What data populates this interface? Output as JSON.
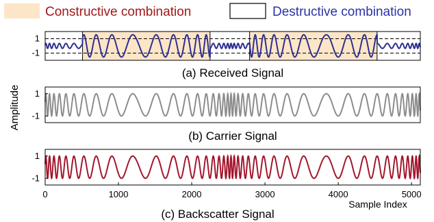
{
  "legend": {
    "items": [
      {
        "label": "Constructive combination",
        "text_color": "#a01818",
        "swatch_color": "#fde5c7",
        "swatch_border": "none"
      },
      {
        "label": "Destructive combination",
        "text_color": "#2a33a6",
        "swatch_color": "#ffffff",
        "swatch_border": "#000000"
      }
    ]
  },
  "shared_ylabel": "Amplitude",
  "chart_data": [
    {
      "type": "line",
      "title": "(a) Received Signal",
      "color": "#2b2f91",
      "yticks": [
        1,
        -1
      ],
      "ylim": [
        -2,
        2
      ],
      "xlim": [
        0,
        5120
      ],
      "dashed_reference_lines": [
        1,
        -1
      ],
      "envelope": {
        "kind": "received",
        "destructive_amplitude": 0.35,
        "constructive_amplitude": 1.55
      },
      "constructive_regions": [
        [
          510,
          2250
        ],
        [
          2790,
          4530
        ]
      ],
      "destructive_regions": [
        [
          0,
          510
        ],
        [
          2250,
          2790
        ],
        [
          4530,
          5120
        ]
      ]
    },
    {
      "type": "line",
      "title": "(b) Carrier Signal",
      "color": "#8c8c8c",
      "yticks": [
        1,
        -1
      ],
      "ylim": [
        -1.6,
        1.6
      ],
      "xlim": [
        0,
        5120
      ],
      "envelope": {
        "kind": "constant",
        "amplitude": 1
      }
    },
    {
      "type": "line",
      "title": "(c) Backscatter Signal",
      "color": "#a3162c",
      "yticks": [
        1,
        -1
      ],
      "ylim": [
        -1.6,
        1.6
      ],
      "xlim": [
        0,
        5120
      ],
      "xticks": [
        0,
        1000,
        2000,
        3000,
        4000,
        5000
      ],
      "xlabel": "Sample Index",
      "envelope": {
        "kind": "constant",
        "amplitude": 1
      }
    }
  ],
  "shared_waveform": {
    "description_none": "",
    "chirp_period_samples": 2560,
    "high_frequency_period_samples": 40,
    "low_frequency_period_samples": 380,
    "slow_center_offset_samples": 1260
  }
}
